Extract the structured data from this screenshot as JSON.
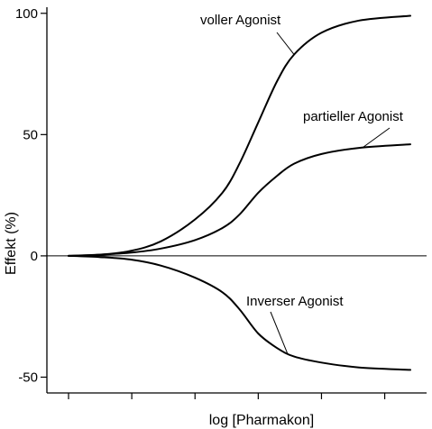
{
  "chart_data": {
    "type": "line",
    "xlabel": "log [Pharmakon]",
    "ylabel": "Effekt (%)",
    "x_range": [
      0,
      1
    ],
    "ylim": [
      -58,
      104
    ],
    "yticks": [
      100,
      50,
      0,
      -50
    ],
    "ytick_labels": [
      "100",
      "50",
      "0",
      "-50"
    ],
    "xticks": [
      0,
      0.185,
      0.37,
      0.555,
      0.74,
      0.925
    ],
    "xticks_labeled": false,
    "zero_line": true,
    "grid": false,
    "series": [
      {
        "name": "voller Agonist",
        "x": [
          0,
          0.09,
          0.18,
          0.27,
          0.37,
          0.45,
          0.5,
          0.555,
          0.61,
          0.66,
          0.74,
          0.85,
          1.0
        ],
        "y": [
          0,
          0.5,
          2,
          6,
          15,
          26,
          38,
          55,
          72,
          83,
          92,
          97,
          99
        ]
      },
      {
        "name": "partieller Agonist",
        "x": [
          0,
          0.09,
          0.18,
          0.27,
          0.37,
          0.45,
          0.5,
          0.555,
          0.61,
          0.66,
          0.74,
          0.85,
          1.0
        ],
        "y": [
          0,
          0.5,
          1.3,
          3,
          6.5,
          11.5,
          17,
          26,
          33,
          38,
          42,
          44.5,
          46
        ]
      },
      {
        "name": "Inverser Agonist",
        "x": [
          0,
          0.09,
          0.18,
          0.27,
          0.37,
          0.45,
          0.5,
          0.555,
          0.61,
          0.66,
          0.74,
          0.85,
          1.0
        ],
        "y": [
          0,
          -0.5,
          -1.5,
          -4,
          -9,
          -15,
          -22,
          -32,
          -38,
          -41.5,
          -44,
          -46,
          -47
        ]
      }
    ],
    "annotations": [
      {
        "text": "voller Agonist",
        "series": 0,
        "x": 0.66
      },
      {
        "text": "partieller Agonist",
        "series": 1,
        "x": 0.86
      },
      {
        "text": "Inverser Agonist",
        "series": 2,
        "x": 0.64
      }
    ]
  }
}
